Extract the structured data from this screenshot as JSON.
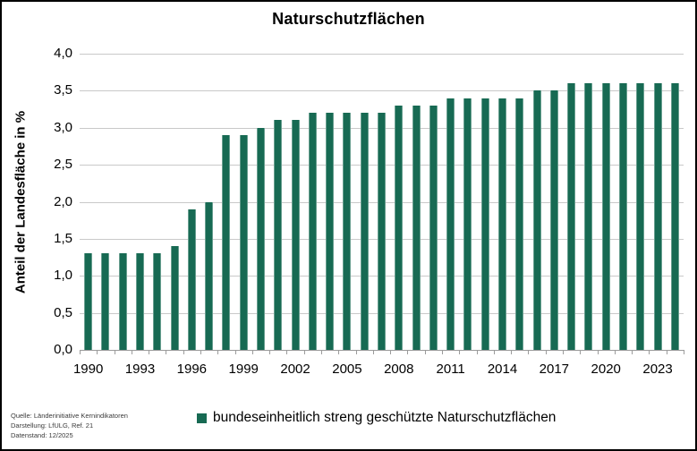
{
  "chart_data": {
    "type": "bar",
    "title": "Naturschutzflächen",
    "ylabel": "Anteil der Landesfläche in %",
    "xlabel": "",
    "ylim": [
      0.0,
      4.0
    ],
    "ytick_step": 0.5,
    "decimal_separator": ",",
    "grid": true,
    "legend_position": "bottom",
    "bar_color": "#176a53",
    "gridline_color": "#c9c9c9",
    "axis_color": "#9b9b9b",
    "categories": [
      1990,
      1991,
      1992,
      1993,
      1994,
      1995,
      1996,
      1997,
      1998,
      1999,
      2000,
      2001,
      2002,
      2003,
      2004,
      2005,
      2006,
      2007,
      2008,
      2009,
      2010,
      2011,
      2012,
      2013,
      2014,
      2015,
      2016,
      2017,
      2018,
      2019,
      2020,
      2021,
      2022,
      2023,
      2024
    ],
    "values": [
      1.3,
      1.3,
      1.3,
      1.3,
      1.3,
      1.4,
      1.9,
      2.0,
      2.9,
      2.9,
      3.0,
      3.1,
      3.1,
      3.2,
      3.2,
      3.2,
      3.2,
      3.2,
      3.3,
      3.3,
      3.3,
      3.4,
      3.4,
      3.4,
      3.4,
      3.4,
      3.5,
      3.5,
      3.6,
      3.6,
      3.6,
      3.6,
      3.6,
      3.6,
      3.6
    ],
    "xtick_labels": [
      "1990",
      "1993",
      "1996",
      "1999",
      "2002",
      "2005",
      "2008",
      "2011",
      "2014",
      "2017",
      "2020",
      "2023"
    ],
    "legend": [
      {
        "label": "bundeseinheitlich streng geschützte Naturschutzflächen",
        "color": "#176a53"
      }
    ]
  },
  "footer": {
    "source_lines": [
      "Quelle: Länderinitiative Kernindikatoren",
      "Darstellung: LfULG, Ref. 21",
      "Datenstand: 12/2025"
    ]
  }
}
